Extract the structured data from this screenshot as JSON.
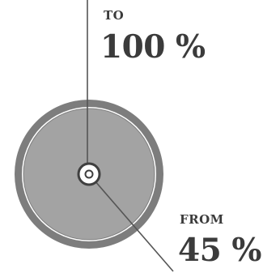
{
  "diagram": {
    "to": {
      "label": "TO",
      "value_text": "100 %",
      "value": 100
    },
    "from": {
      "label": "FROM",
      "value_text": "45 %",
      "value": 45
    },
    "colors": {
      "outer_ring": "#7d7d7d",
      "inner_disk": "#a3a3a3",
      "line": "#555555",
      "center_ring": "#3f3f3f",
      "text": "#3b3b3b"
    }
  }
}
